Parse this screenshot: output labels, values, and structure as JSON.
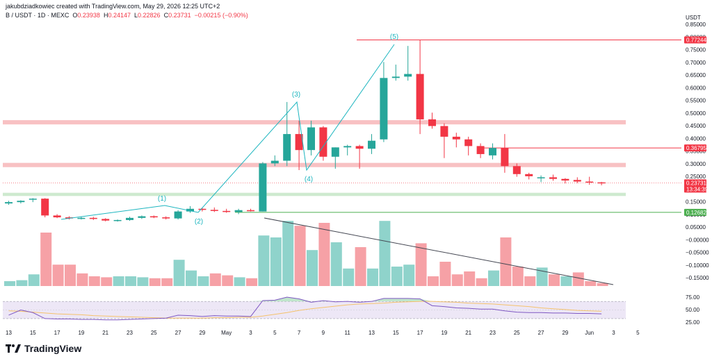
{
  "header": {
    "attribution": "jakubdziadkowiec created with TradingView.com, May 29, 2026 12:25 UTC+2",
    "symbol": "B / USDT · 1D · MEXC",
    "open_label": "O",
    "open": "0.23938",
    "high_label": "H",
    "high": "0.24147",
    "low_label": "L",
    "low": "0.22826",
    "close_label": "C",
    "close": "0.23731",
    "change": "−0.00215 (−0.90%)"
  },
  "brand": {
    "name": "TradingView"
  },
  "price_axis": {
    "currency": "USDT",
    "labels": [
      "0.85000",
      "0.80000",
      "0.75000",
      "0.70000",
      "0.65000",
      "0.60000",
      "0.55000",
      "0.50000",
      "0.45000",
      "0.40000",
      "0.35000",
      "0.30000",
      "0.25000",
      "0.20000",
      "0.15000",
      "0.10000",
      "0.05000",
      "−0.00000",
      "−0.05000",
      "−0.10000",
      "−0.15000"
    ],
    "tags": {
      "top": "0.77244",
      "mid": "0.36795",
      "last": "0.23731",
      "countdown": "13:34:39",
      "low": "0.12682"
    }
  },
  "rsi_axis": {
    "labels": [
      "75.00",
      "50.00",
      "25.00"
    ]
  },
  "time_axis": {
    "labels": [
      "13",
      "15",
      "17",
      "19",
      "21",
      "23",
      "25",
      "27",
      "29",
      "May",
      "3",
      "5",
      "7",
      "9",
      "11",
      "13",
      "15",
      "17",
      "19",
      "21",
      "23",
      "25",
      "27",
      "29",
      "Jun",
      "3",
      "5"
    ]
  },
  "waves": [
    "(1)",
    "(2)",
    "(3)",
    "(4)",
    "(5)"
  ],
  "colors": {
    "up": "#26a69a",
    "down": "#f23645",
    "wave": "#1cb5bf",
    "rsi": "#7e57c2",
    "rsi_ma": "#f5c26b"
  },
  "chart_data": {
    "type": "candlestick",
    "interval": "1D",
    "x_range": [
      "Apr 12",
      "Jun 6"
    ],
    "y_range": [
      -0.17,
      0.87
    ],
    "ohlc_open_high_low_close": [
      [
        0.16,
        0.17,
        0.155,
        0.165
      ],
      [
        0.165,
        0.172,
        0.16,
        0.17
      ],
      [
        0.175,
        0.18,
        0.165,
        0.178
      ],
      [
        0.178,
        0.18,
        0.108,
        0.115
      ],
      [
        0.115,
        0.12,
        0.105,
        0.108
      ],
      [
        0.108,
        0.112,
        0.1,
        0.104
      ],
      [
        0.104,
        0.11,
        0.1,
        0.106
      ],
      [
        0.106,
        0.11,
        0.098,
        0.102
      ],
      [
        0.102,
        0.105,
        0.093,
        0.096
      ],
      [
        0.096,
        0.1,
        0.092,
        0.098
      ],
      [
        0.098,
        0.11,
        0.095,
        0.106
      ],
      [
        0.106,
        0.115,
        0.102,
        0.112
      ],
      [
        0.112,
        0.115,
        0.105,
        0.108
      ],
      [
        0.108,
        0.112,
        0.1,
        0.104
      ],
      [
        0.104,
        0.135,
        0.1,
        0.13
      ],
      [
        0.13,
        0.15,
        0.125,
        0.14
      ],
      [
        0.14,
        0.145,
        0.13,
        0.136
      ],
      [
        0.136,
        0.145,
        0.128,
        0.132
      ],
      [
        0.132,
        0.14,
        0.125,
        0.128
      ],
      [
        0.128,
        0.14,
        0.12,
        0.135
      ],
      [
        0.135,
        0.14,
        0.13,
        0.132
      ],
      [
        0.13,
        0.315,
        0.13,
        0.31
      ],
      [
        0.31,
        0.34,
        0.3,
        0.32
      ],
      [
        0.32,
        0.54,
        0.3,
        0.42
      ],
      [
        0.42,
        0.47,
        0.285,
        0.36
      ],
      [
        0.36,
        0.47,
        0.34,
        0.445
      ],
      [
        0.445,
        0.45,
        0.32,
        0.335
      ],
      [
        0.335,
        0.37,
        0.29,
        0.37
      ],
      [
        0.37,
        0.38,
        0.34,
        0.375
      ],
      [
        0.375,
        0.38,
        0.29,
        0.365
      ],
      [
        0.365,
        0.42,
        0.345,
        0.395
      ],
      [
        0.4,
        0.69,
        0.39,
        0.63
      ],
      [
        0.63,
        0.68,
        0.62,
        0.635
      ],
      [
        0.635,
        0.75,
        0.62,
        0.645
      ],
      [
        0.645,
        0.772,
        0.42,
        0.475
      ],
      [
        0.475,
        0.5,
        0.44,
        0.45
      ],
      [
        0.45,
        0.46,
        0.33,
        0.41
      ],
      [
        0.41,
        0.425,
        0.37,
        0.4
      ],
      [
        0.4,
        0.41,
        0.34,
        0.375
      ],
      [
        0.375,
        0.385,
        0.33,
        0.345
      ],
      [
        0.34,
        0.385,
        0.325,
        0.368
      ],
      [
        0.368,
        0.42,
        0.275,
        0.3
      ],
      [
        0.3,
        0.31,
        0.26,
        0.27
      ],
      [
        0.27,
        0.275,
        0.25,
        0.262
      ],
      [
        0.258,
        0.265,
        0.24,
        0.258
      ],
      [
        0.258,
        0.268,
        0.245,
        0.252
      ],
      [
        0.252,
        0.255,
        0.235,
        0.246
      ],
      [
        0.248,
        0.258,
        0.236,
        0.242
      ],
      [
        0.242,
        0.26,
        0.23,
        0.239
      ],
      [
        0.239,
        0.241,
        0.228,
        0.237
      ]
    ],
    "volume_direction": [
      "u",
      "u",
      "u",
      "d",
      "d",
      "d",
      "d",
      "d",
      "d",
      "u",
      "u",
      "u",
      "d",
      "d",
      "u",
      "u",
      "u",
      "d",
      "d",
      "u",
      "d",
      "u",
      "u",
      "u",
      "d",
      "u",
      "d",
      "u",
      "u",
      "d",
      "u",
      "u",
      "u",
      "u",
      "d",
      "d",
      "d",
      "d",
      "d",
      "d",
      "u",
      "d",
      "d",
      "d",
      "u",
      "d",
      "u",
      "d",
      "d",
      "d"
    ],
    "volume_relative": [
      0.05,
      0.06,
      0.12,
      0.55,
      0.22,
      0.22,
      0.13,
      0.1,
      0.09,
      0.1,
      0.1,
      0.09,
      0.08,
      0.08,
      0.27,
      0.16,
      0.1,
      0.13,
      0.11,
      0.09,
      0.08,
      0.52,
      0.5,
      0.67,
      0.62,
      0.37,
      0.65,
      0.45,
      0.18,
      0.4,
      0.18,
      0.67,
      0.2,
      0.22,
      0.44,
      0.1,
      0.25,
      0.12,
      0.15,
      0.08,
      0.16,
      0.5,
      0.2,
      0.1,
      0.19,
      0.12,
      0.1,
      0.14,
      0.05,
      0.03
    ],
    "rsi_range": [
      25,
      75
    ],
    "rsi_band": [
      30,
      70
    ],
    "rsi": [
      38,
      50,
      44,
      30,
      29,
      29,
      28,
      28,
      27,
      27,
      28,
      29,
      30,
      31,
      38,
      37,
      35,
      37,
      36,
      36,
      35,
      72,
      73,
      80,
      76,
      68,
      72,
      69,
      70,
      68,
      70,
      77,
      77,
      77,
      76,
      60,
      58,
      55,
      54,
      52,
      52,
      48,
      45,
      44,
      44,
      43,
      43,
      42,
      42,
      41
    ],
    "rsi_ma": [
      48,
      47,
      45,
      43,
      41,
      40,
      39,
      37,
      36,
      35,
      34,
      33,
      32,
      31,
      31,
      31,
      31,
      32,
      32,
      33,
      33,
      36,
      40,
      44,
      49,
      53,
      56,
      59,
      62,
      64,
      65,
      66,
      68,
      69,
      70,
      70,
      69,
      68,
      66,
      65,
      64,
      62,
      60,
      58,
      55,
      53,
      51,
      49,
      48,
      47
    ],
    "zones": [
      {
        "color": "red",
        "from": 0.456,
        "to": 0.472
      },
      {
        "color": "red",
        "from": 0.296,
        "to": 0.312
      },
      {
        "color": "green",
        "from": 0.188,
        "to": 0.2
      }
    ],
    "levels": [
      {
        "value": 0.77244,
        "color": "red"
      },
      {
        "value": 0.36795,
        "color": "red"
      },
      {
        "value": 0.12682,
        "color": "green"
      },
      {
        "value": 0.23731,
        "color": "red",
        "style": "dotted"
      }
    ]
  }
}
